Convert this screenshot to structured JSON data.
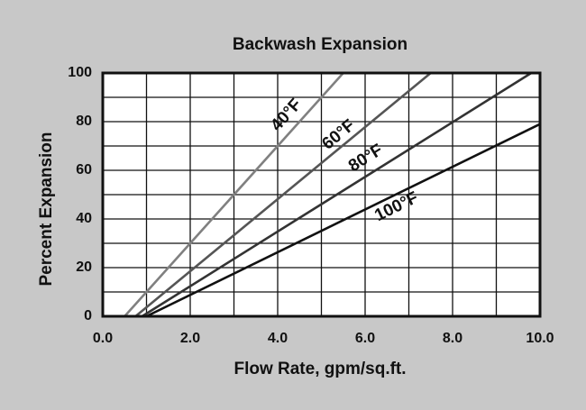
{
  "chart_data": {
    "type": "line",
    "title": "Backwash Expansion",
    "x_label": "Flow Rate, gpm/sq.ft.",
    "y_label": "Percent Expansion",
    "xlim": [
      0,
      10
    ],
    "ylim": [
      0,
      100
    ],
    "xticks": [
      {
        "value": 0,
        "label": "0.0"
      },
      {
        "value": 2,
        "label": "2.0"
      },
      {
        "value": 4,
        "label": "4.0"
      },
      {
        "value": 6,
        "label": "6.0"
      },
      {
        "value": 8,
        "label": "8.0"
      },
      {
        "value": 10,
        "label": "10.0"
      }
    ],
    "xminorticks": [
      1,
      3,
      5,
      7,
      9
    ],
    "yticks": [
      0,
      20,
      40,
      60,
      80,
      100
    ],
    "yminorticks": [
      10,
      30,
      50,
      70,
      90
    ],
    "grid": true,
    "series": [
      {
        "name": "40°F",
        "color": "#808080",
        "x": [
          0.5,
          5.5
        ],
        "values": [
          0,
          100
        ]
      },
      {
        "name": "60°F",
        "color": "#555555",
        "x": [
          0.75,
          7.5
        ],
        "values": [
          0,
          100
        ]
      },
      {
        "name": "80°F",
        "color": "#333333",
        "x": [
          0.9,
          9.8
        ],
        "values": [
          0,
          100
        ]
      },
      {
        "name": "100°F",
        "color": "#111111",
        "x": [
          1.0,
          10
        ],
        "values": [
          0,
          79
        ]
      }
    ]
  }
}
